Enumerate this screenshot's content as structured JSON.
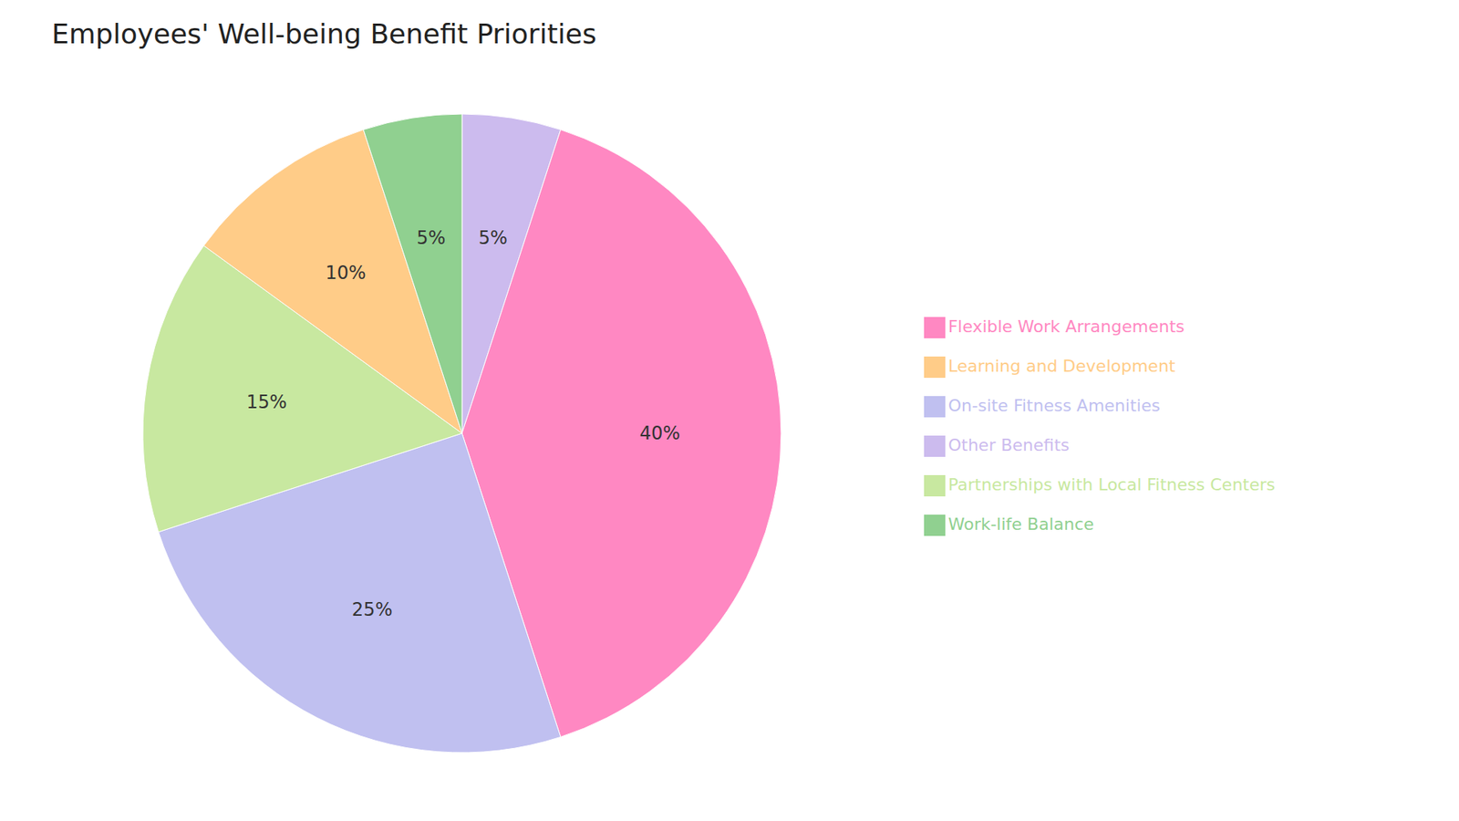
{
  "chart_data": {
    "type": "pie",
    "title": "Employees' Well-being Benefit Priorities",
    "categories": [
      "Other Benefits",
      "Flexible Work Arrangements",
      "On-site Fitness Amenities",
      "Partnerships with Local Fitness Centers",
      "Learning and Development",
      "Work-life Balance"
    ],
    "values": [
      5,
      40,
      25,
      15,
      10,
      5
    ],
    "value_labels": [
      "5%",
      "40%",
      "25%",
      "15%",
      "10%",
      "5%"
    ],
    "colors": [
      "#CCBBEE",
      "#FF88C2",
      "#C0C0F0",
      "#C8E8A0",
      "#FFCC88",
      "#90D090"
    ],
    "data_labels": true,
    "legend": "right"
  }
}
